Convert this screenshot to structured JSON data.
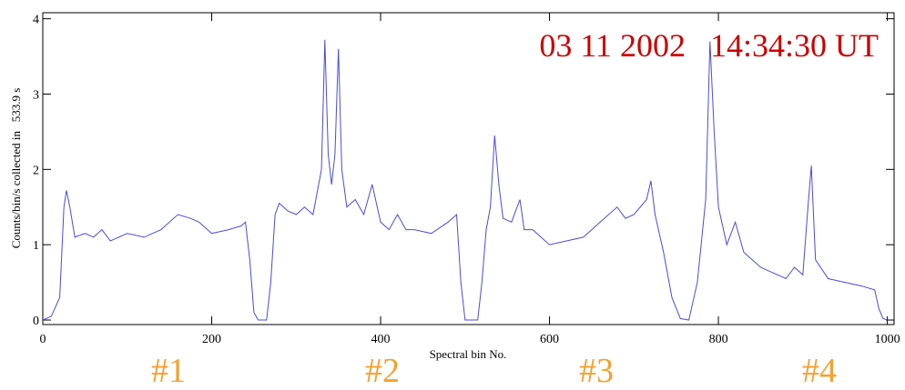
{
  "chart_data": {
    "type": "line",
    "annotation": "03 11 2002   14:34:30 UT",
    "xlabel": "Spectral bin No.",
    "ylabel": "Counts/bin/s collected in   533.9 s",
    "region_labels": [
      "#1",
      "#2",
      "#3",
      "#4"
    ],
    "color": "#4a4ae0",
    "x": [
      0,
      10,
      20,
      25,
      28,
      32,
      38,
      50,
      60,
      70,
      80,
      100,
      120,
      140,
      160,
      175,
      185,
      200,
      220,
      235,
      240,
      245,
      250,
      255,
      265,
      270,
      275,
      280,
      290,
      300,
      310,
      320,
      330,
      334,
      338,
      342,
      346,
      350,
      354,
      360,
      370,
      380,
      390,
      400,
      410,
      420,
      430,
      440,
      460,
      480,
      490,
      495,
      500,
      515,
      520,
      525,
      530,
      535,
      540,
      545,
      555,
      565,
      570,
      580,
      600,
      620,
      640,
      660,
      680,
      690,
      700,
      715,
      720,
      725,
      735,
      745,
      755,
      765,
      775,
      785,
      790,
      795,
      800,
      810,
      820,
      830,
      840,
      850,
      860,
      870,
      880,
      890,
      900,
      906,
      910,
      915,
      930,
      950,
      970,
      985,
      990,
      995,
      1000
    ],
    "values": [
      0,
      0.05,
      0.3,
      1.5,
      1.72,
      1.5,
      1.1,
      1.15,
      1.1,
      1.2,
      1.05,
      1.15,
      1.1,
      1.2,
      1.4,
      1.35,
      1.3,
      1.15,
      1.2,
      1.25,
      1.3,
      0.8,
      0.1,
      0,
      0,
      0.5,
      1.4,
      1.55,
      1.45,
      1.4,
      1.5,
      1.4,
      2.0,
      3.72,
      2.2,
      1.8,
      2.2,
      3.6,
      2.0,
      1.5,
      1.6,
      1.4,
      1.8,
      1.3,
      1.2,
      1.4,
      1.2,
      1.2,
      1.15,
      1.3,
      1.4,
      0.5,
      0,
      0,
      0.5,
      1.2,
      1.5,
      2.45,
      1.8,
      1.35,
      1.3,
      1.6,
      1.2,
      1.2,
      1.0,
      1.05,
      1.1,
      1.3,
      1.5,
      1.35,
      1.4,
      1.6,
      1.85,
      1.4,
      0.9,
      0.3,
      0.02,
      0,
      0.5,
      1.6,
      3.7,
      2.5,
      1.5,
      1.0,
      1.3,
      0.9,
      0.8,
      0.7,
      0.65,
      0.6,
      0.55,
      0.7,
      0.6,
      1.5,
      2.05,
      0.8,
      0.55,
      0.5,
      0.45,
      0.4,
      0.15,
      0.02,
      0
    ],
    "xlim": [
      0,
      1008
    ],
    "ylim": [
      -0.06,
      4.08
    ],
    "xticks": [
      0,
      200,
      400,
      600,
      800,
      1000
    ],
    "yticks": [
      0,
      1,
      2,
      3,
      4
    ]
  }
}
